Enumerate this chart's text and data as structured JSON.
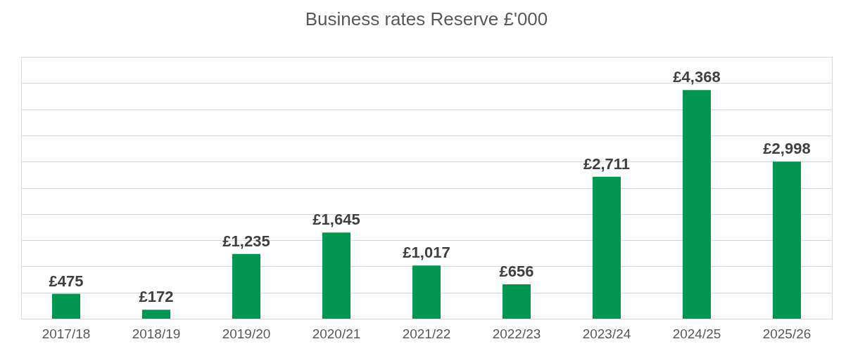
{
  "chart_data": {
    "type": "bar",
    "title": "Business rates Reserve £'000",
    "categories": [
      "2017/18",
      "2018/19",
      "2019/20",
      "2020/21",
      "2021/22",
      "2022/23",
      "2023/24",
      "2024/25",
      "2025/26"
    ],
    "values": [
      475,
      172,
      1235,
      1645,
      1017,
      656,
      2711,
      4368,
      2998
    ],
    "value_labels": [
      "£475",
      "£172",
      "£1,235",
      "£1,645",
      "£1,017",
      "£656",
      "£2,711",
      "£4,368",
      "£2,998"
    ],
    "color": "#009650",
    "ylim": [
      0,
      5000
    ],
    "yticks": [
      {
        "value": 0,
        "label": null
      },
      {
        "value": 500,
        "label": null
      },
      {
        "value": 1000,
        "label": null
      },
      {
        "value": 1500,
        "label": null
      },
      {
        "value": 2000,
        "label": null
      },
      {
        "value": 2500,
        "label": null
      },
      {
        "value": 3000,
        "label": null
      },
      {
        "value": 3500,
        "label": null
      },
      {
        "value": 4000,
        "label": null
      },
      {
        "value": 4500,
        "label": null
      },
      {
        "value": 5000,
        "label": null
      }
    ],
    "tick_labels": "x",
    "grid": "y"
  }
}
